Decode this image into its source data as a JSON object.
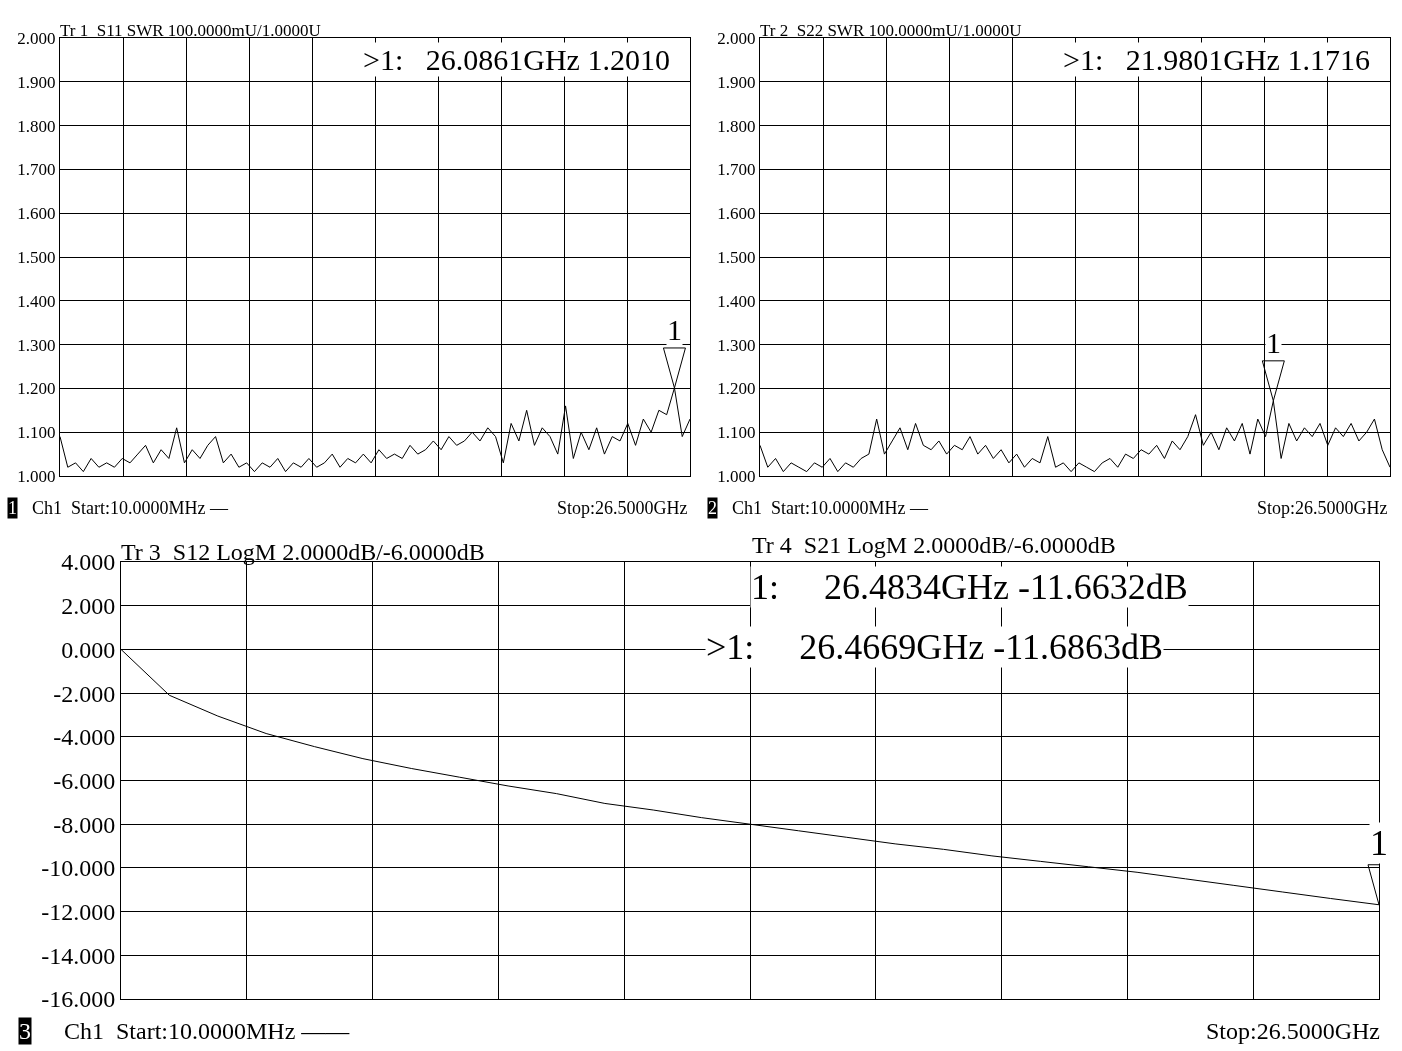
{
  "chart_data": [
    {
      "type": "line",
      "title": "Tr 1  S11 SWR 100.0000mU/1.0000U",
      "color": "#000000",
      "grid": true,
      "tick_labels": "y",
      "categories": [
        null,
        null,
        null,
        null,
        null,
        null,
        null,
        null,
        null,
        null,
        null,
        null,
        null,
        null,
        null,
        null,
        null,
        null,
        null,
        null,
        null,
        null,
        null,
        null,
        null,
        null,
        null,
        null,
        null,
        null,
        null,
        null,
        null,
        null,
        null,
        null,
        null,
        null,
        null,
        null,
        null,
        null,
        null,
        null,
        null,
        null,
        null,
        null,
        null,
        null,
        null,
        null,
        null,
        null,
        null,
        null,
        null,
        null,
        null,
        null,
        null,
        null,
        null,
        null,
        null,
        null,
        null,
        null,
        null,
        null,
        null,
        null,
        null,
        null,
        null,
        null,
        null,
        null,
        null,
        null,
        null,
        null
      ],
      "values": [
        1.09,
        1.02,
        1.03,
        1.01,
        1.04,
        1.02,
        1.03,
        1.02,
        1.04,
        1.03,
        1.05,
        1.07,
        1.03,
        1.06,
        1.04,
        1.11,
        1.03,
        1.06,
        1.04,
        1.07,
        1.09,
        1.03,
        1.05,
        1.02,
        1.03,
        1.01,
        1.03,
        1.02,
        1.04,
        1.01,
        1.03,
        1.02,
        1.04,
        1.02,
        1.03,
        1.05,
        1.02,
        1.04,
        1.03,
        1.05,
        1.03,
        1.06,
        1.04,
        1.05,
        1.04,
        1.07,
        1.05,
        1.06,
        1.08,
        1.06,
        1.09,
        1.07,
        1.08,
        1.1,
        1.08,
        1.11,
        1.09,
        1.03,
        1.12,
        1.08,
        1.15,
        1.07,
        1.11,
        1.09,
        1.05,
        1.16,
        1.04,
        1.1,
        1.06,
        1.11,
        1.05,
        1.09,
        1.08,
        1.12,
        1.07,
        1.13,
        1.1,
        1.15,
        1.14,
        1.201,
        1.09,
        1.13
      ],
      "ylim": [
        1,
        2
      ],
      "yticks": [
        {
          "value": 1,
          "label": "1.000"
        },
        {
          "value": 1.1,
          "label": "1.100"
        },
        {
          "value": 1.2,
          "label": "1.200"
        },
        {
          "value": 1.3,
          "label": "1.300"
        },
        {
          "value": 1.4,
          "label": "1.400"
        },
        {
          "value": 1.5,
          "label": "1.500"
        },
        {
          "value": 1.6,
          "label": "1.600"
        },
        {
          "value": 1.7,
          "label": "1.700"
        },
        {
          "value": 1.8,
          "label": "1.800"
        },
        {
          "value": 1.9,
          "label": "1.900"
        },
        {
          "value": 2,
          "label": "2.000"
        }
      ],
      "annotations": [
        {
          "text": "1",
          "y": 1.201
        },
        ">1:   26.0861GHz 1.2010",
        "1",
        "Ch1  Start:10.0000MHz —",
        "Stop:26.5000GHz"
      ]
    },
    {
      "type": "line",
      "title": "Tr 2  S22 SWR 100.0000mU/1.0000U",
      "color": "#000000",
      "grid": true,
      "tick_labels": "y",
      "categories": [
        null,
        null,
        null,
        null,
        null,
        null,
        null,
        null,
        null,
        null,
        null,
        null,
        null,
        null,
        null,
        null,
        null,
        null,
        null,
        null,
        null,
        null,
        null,
        null,
        null,
        null,
        null,
        null,
        null,
        null,
        null,
        null,
        null,
        null,
        null,
        null,
        null,
        null,
        null,
        null,
        null,
        null,
        null,
        null,
        null,
        null,
        null,
        null,
        null,
        null,
        null,
        null,
        null,
        null,
        null,
        null,
        null,
        null,
        null,
        null,
        null,
        null,
        null,
        null,
        null,
        null,
        null,
        null,
        null,
        null,
        null,
        null,
        null,
        null,
        null,
        null,
        null,
        null,
        null,
        null,
        null,
        null
      ],
      "values": [
        1.07,
        1.02,
        1.04,
        1.01,
        1.03,
        1.02,
        1.01,
        1.03,
        1.02,
        1.04,
        1.01,
        1.03,
        1.02,
        1.04,
        1.05,
        1.13,
        1.05,
        1.08,
        1.11,
        1.06,
        1.12,
        1.07,
        1.06,
        1.08,
        1.05,
        1.07,
        1.06,
        1.09,
        1.05,
        1.07,
        1.04,
        1.06,
        1.03,
        1.05,
        1.02,
        1.04,
        1.03,
        1.09,
        1.02,
        1.03,
        1.01,
        1.03,
        1.02,
        1.01,
        1.03,
        1.04,
        1.02,
        1.05,
        1.04,
        1.06,
        1.05,
        1.07,
        1.04,
        1.08,
        1.06,
        1.09,
        1.14,
        1.07,
        1.1,
        1.06,
        1.11,
        1.08,
        1.12,
        1.05,
        1.13,
        1.09,
        1.1716,
        1.04,
        1.12,
        1.08,
        1.11,
        1.09,
        1.12,
        1.07,
        1.11,
        1.09,
        1.12,
        1.08,
        1.1,
        1.13,
        1.06,
        1.02
      ],
      "ylim": [
        1,
        2
      ],
      "yticks": [
        {
          "value": 1,
          "label": "1.000"
        },
        {
          "value": 1.1,
          "label": "1.100"
        },
        {
          "value": 1.2,
          "label": "1.200"
        },
        {
          "value": 1.3,
          "label": "1.300"
        },
        {
          "value": 1.4,
          "label": "1.400"
        },
        {
          "value": 1.5,
          "label": "1.500"
        },
        {
          "value": 1.6,
          "label": "1.600"
        },
        {
          "value": 1.7,
          "label": "1.700"
        },
        {
          "value": 1.8,
          "label": "1.800"
        },
        {
          "value": 1.9,
          "label": "1.900"
        },
        {
          "value": 2,
          "label": "2.000"
        }
      ],
      "annotations": [
        {
          "text": "1",
          "y": 1.1716
        },
        ">1:   21.9801GHz 1.1716",
        "2",
        "Ch1  Start:10.0000MHz —",
        "Stop:26.5000GHz"
      ]
    },
    {
      "type": "line",
      "title": "Tr 3  S12 LogM 2.0000dB/-6.0000dB",
      "subtitle": "Tr 4  S21 LogM 2.0000dB/-6.0000dB",
      "color": "#000000",
      "grid": true,
      "tick_labels": "y",
      "categories": [
        null,
        null,
        null,
        null,
        null,
        null,
        null,
        null,
        null,
        null,
        null,
        null,
        null,
        null,
        null,
        null,
        null,
        null,
        null,
        null,
        null,
        null,
        null,
        null,
        null,
        null,
        null
      ],
      "values": [
        0,
        -2.1,
        -3.05,
        -3.85,
        -4.45,
        -5.0,
        -5.45,
        -5.85,
        -6.25,
        -6.6,
        -7.05,
        -7.35,
        -7.7,
        -8.0,
        -8.3,
        -8.6,
        -8.9,
        -9.15,
        -9.45,
        -9.7,
        -9.95,
        -10.2,
        -10.5,
        -10.8,
        -11.1,
        -11.4,
        -11.6863
      ],
      "ylim": [
        -16,
        4
      ],
      "yticks": [
        {
          "value": 4,
          "label": "4.000"
        },
        {
          "value": 2,
          "label": "2.000"
        },
        {
          "value": 0,
          "label": "0.000"
        },
        {
          "value": -2,
          "label": "-2.000"
        },
        {
          "value": -4,
          "label": "-4.000"
        },
        {
          "value": -6,
          "label": "-6.000"
        },
        {
          "value": -8,
          "label": "-8.000"
        },
        {
          "value": -10,
          "label": "-10.000"
        },
        {
          "value": -12,
          "label": "-12.000"
        },
        {
          "value": -14,
          "label": "-14.000"
        },
        {
          "value": -16,
          "label": "-16.000"
        }
      ],
      "annotations": [
        {
          "text": "1",
          "y": -11.6863
        },
        "1:     26.4834GHz -11.6632dB",
        ">1:     26.4669GHz -11.6863dB",
        "3",
        "Ch1  Start:10.0000MHz ——",
        "Stop:26.5000GHz"
      ]
    }
  ]
}
